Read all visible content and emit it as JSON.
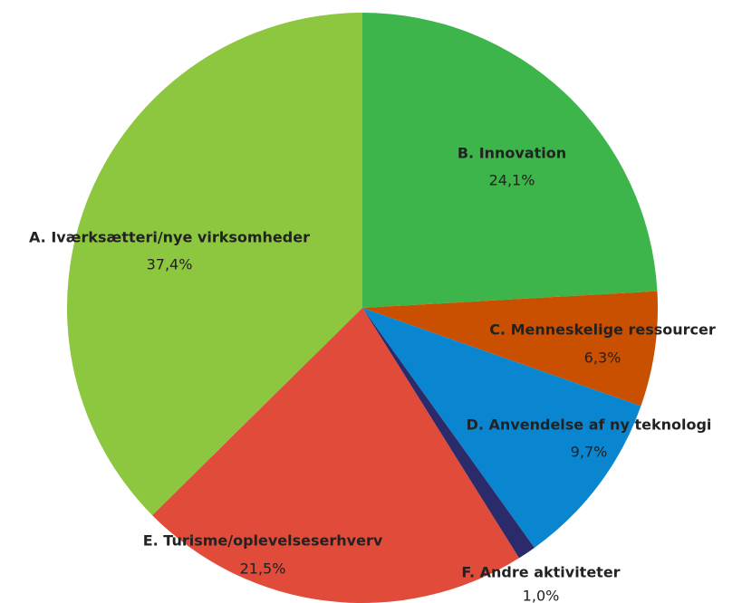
{
  "chart_data": {
    "type": "pie",
    "categories": [
      "B. Innovation",
      "C. Menneskelige ressourcer",
      "D. Anvendelse af ny teknologi",
      "F. Andre aktiviteter",
      "E. Turisme/oplevelseserhverv",
      "A. Iværksætteri/nye virksomheder"
    ],
    "values": [
      24.1,
      6.3,
      9.7,
      1.0,
      21.5,
      37.4
    ],
    "value_labels": [
      "24,1%",
      "6,3%",
      "9,7%",
      "1,0%",
      "21,5%",
      "37,4%"
    ],
    "colors": [
      "#3db54a",
      "#c85000",
      "#0a86d0",
      "#2b2a6b",
      "#e04b3a",
      "#8dc63f"
    ]
  }
}
